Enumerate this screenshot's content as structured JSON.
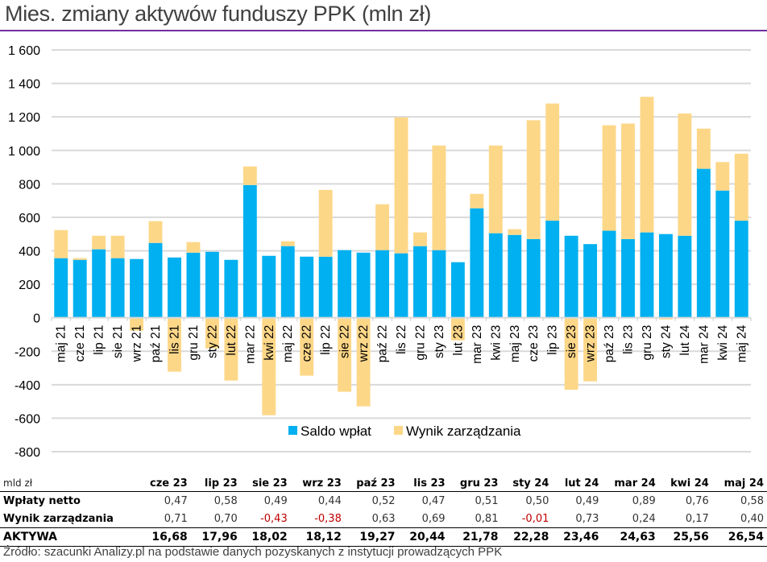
{
  "title": "Mies. zmiany aktywów funduszy PPK (mln zł)",
  "colors": {
    "saldo": "#00b0f0",
    "wynik": "#fdd788",
    "grid": "#d9d9d9",
    "title_rule": "#7030a0",
    "negative_text": "#c00000"
  },
  "chart_data": {
    "type": "bar",
    "stacked": true,
    "title": "Mies. zmiany aktywów funduszy PPK (mln zł)",
    "xlabel": "",
    "ylabel": "",
    "ylim": [
      -800,
      1600
    ],
    "yticks": [
      1600,
      1400,
      1200,
      1000,
      800,
      600,
      400,
      200,
      0,
      -200,
      -400,
      -600,
      -800
    ],
    "ytick_labels": [
      "1 600",
      "1 400",
      "1 200",
      "1 000",
      "800",
      "600",
      "400",
      "200",
      "0",
      "-200",
      "-400",
      "-600",
      "-800"
    ],
    "grid": true,
    "legend_position": "bottom-center",
    "categories": [
      "maj 21",
      "cze 21",
      "lip 21",
      "sie 21",
      "wrz 21",
      "paź 21",
      "lis 21",
      "gru 21",
      "sty 22",
      "lut 22",
      "mar 22",
      "kwi 22",
      "maj 22",
      "cze 22",
      "lip 22",
      "sie 22",
      "wrz 22",
      "paź 22",
      "lis 22",
      "gru 22",
      "sty 23",
      "lut 23",
      "mar 23",
      "kwi 23",
      "maj 23",
      "cze 23",
      "lip 23",
      "sie 23",
      "wrz 23",
      "paź 23",
      "lis 23",
      "gru 23",
      "sty 24",
      "lut 24",
      "mar 24",
      "kwi 24",
      "maj 24"
    ],
    "series": [
      {
        "name": "Saldo wpłat",
        "values": [
          356,
          346,
          409,
          356,
          351,
          447,
          360,
          389,
          394,
          346,
          793,
          370,
          428,
          365,
          365,
          404,
          389,
          404,
          385,
          428,
          404,
          332,
          654,
          505,
          495,
          470,
          580,
          490,
          440,
          520,
          470,
          510,
          500,
          490,
          890,
          760,
          580
        ]
      },
      {
        "name": "Wynik zarządzania",
        "values": [
          168,
          10,
          81,
          134,
          -77,
          130,
          -322,
          63,
          -183,
          -375,
          111,
          -582,
          29,
          -346,
          399,
          -442,
          -529,
          274,
          812,
          82,
          625,
          -135,
          86,
          524,
          34,
          710,
          700,
          -430,
          -380,
          630,
          690,
          810,
          -10,
          730,
          240,
          170,
          400
        ]
      }
    ]
  },
  "legend": [
    {
      "label": "Saldo wpłat"
    },
    {
      "label": "Wynik zarządzania"
    }
  ],
  "table": {
    "unit_label": "mld zł",
    "columns": [
      "cze 23",
      "lip 23",
      "sie 23",
      "wrz 23",
      "paź 23",
      "lis 23",
      "gru 23",
      "sty 24",
      "lut 24",
      "mar 24",
      "kwi 24",
      "maj 24"
    ],
    "rows": [
      {
        "label": "Wpłaty netto",
        "values": [
          "0,47",
          "0,58",
          "0,49",
          "0,44",
          "0,52",
          "0,47",
          "0,51",
          "0,50",
          "0,49",
          "0,89",
          "0,76",
          "0,58"
        ]
      },
      {
        "label": "Wynik zarządzania",
        "values": [
          "0,71",
          "0,70",
          "-0,43",
          "-0,38",
          "0,63",
          "0,69",
          "0,81",
          "-0,01",
          "0,73",
          "0,24",
          "0,17",
          "0,40"
        ]
      },
      {
        "label": "AKTYWA",
        "values": [
          "16,68",
          "17,96",
          "18,02",
          "18,12",
          "19,27",
          "20,44",
          "21,78",
          "22,28",
          "23,46",
          "24,63",
          "25,56",
          "26,54"
        ],
        "total": true
      }
    ]
  },
  "source": "Źródło: szacunki Analizy.pl na podstawie danych pozyskanych z instytucji prowadzących PPK"
}
